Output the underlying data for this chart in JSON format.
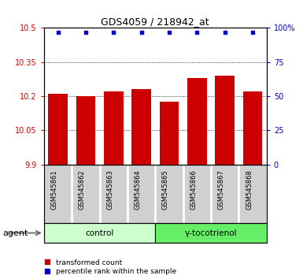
{
  "title": "GDS4059 / 218942_at",
  "samples": [
    "GSM545861",
    "GSM545862",
    "GSM545863",
    "GSM545864",
    "GSM545865",
    "GSM545866",
    "GSM545867",
    "GSM545868"
  ],
  "bar_values": [
    10.21,
    10.2,
    10.22,
    10.23,
    10.175,
    10.28,
    10.29,
    10.22
  ],
  "bar_base": 9.9,
  "percentile_values": [
    97,
    97,
    97,
    97,
    97,
    97,
    97,
    97
  ],
  "bar_color": "#cc0000",
  "dot_color": "#0000cc",
  "ylim_left": [
    9.9,
    10.5
  ],
  "ylim_right": [
    0,
    100
  ],
  "yticks_left": [
    9.9,
    10.05,
    10.2,
    10.35,
    10.5
  ],
  "yticks_right": [
    0,
    25,
    50,
    75,
    100
  ],
  "ytick_labels_left": [
    "9.9",
    "10.05",
    "10.2",
    "10.35",
    "10.5"
  ],
  "ytick_labels_right": [
    "0",
    "25",
    "50",
    "75",
    "100%"
  ],
  "groups": [
    {
      "label": "control",
      "indices": [
        0,
        1,
        2,
        3
      ],
      "color": "#ccffcc"
    },
    {
      "label": "γ-tocotrienol",
      "indices": [
        4,
        5,
        6,
        7
      ],
      "color": "#66ee66"
    }
  ],
  "agent_label": "agent",
  "left_tick_color": "#cc0000",
  "right_tick_color": "#0000cc",
  "legend_items": [
    {
      "label": "transformed count",
      "color": "#cc0000"
    },
    {
      "label": "percentile rank within the sample",
      "color": "#0000cc"
    }
  ],
  "bar_width": 0.7,
  "grid_color": "#000000",
  "background_label": "#d0d0d0"
}
